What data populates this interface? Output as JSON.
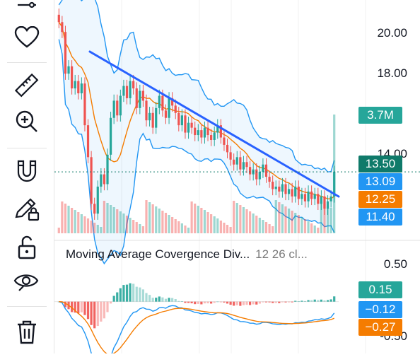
{
  "toolbar": {
    "items": [
      {
        "name": "indicators-icon"
      },
      {
        "name": "favorites-heart-icon"
      },
      {
        "name": "measure-ruler-icon"
      },
      {
        "name": "zoom-in-icon"
      },
      {
        "name": "magnet-icon"
      },
      {
        "name": "drawing-lock-pencil-icon"
      },
      {
        "name": "unlock-icon"
      },
      {
        "name": "hide-eye-icon"
      },
      {
        "name": "trash-icon"
      }
    ]
  },
  "price_axis": {
    "ticks": [
      "20.00",
      "18.00",
      "14.00"
    ],
    "badges": {
      "volume": {
        "value": "3.7M",
        "color": "#26a69a"
      },
      "last_price": {
        "value": "13.50",
        "color": "#26a69a"
      },
      "upper_band": {
        "value": "13.09",
        "color": "#2196f3"
      },
      "ma": {
        "value": "12.25",
        "color": "#f57c00"
      },
      "lower_band": {
        "value": "11.40",
        "color": "#2196f3"
      }
    }
  },
  "macd": {
    "title": "Moving Average Covergence Div...",
    "params": "12 26 cl...",
    "ticks": [
      "0.50",
      "-0.50"
    ],
    "badges": {
      "histogram": {
        "value": "0.15",
        "color": "#26a69a"
      },
      "macd_line": {
        "value": "−0.12",
        "color": "#2196f3"
      },
      "signal_line": {
        "value": "−0.27",
        "color": "#f57c00"
      }
    }
  },
  "colors": {
    "up": "#26a69a",
    "down": "#ef5350",
    "band": "#2196f3",
    "ma": "#f57c00",
    "trendline": "#2962ff"
  },
  "chart_data": {
    "type": "candlestick",
    "price_ylim": [
      11.0,
      20.5
    ],
    "closes": [
      19.6,
      19.2,
      17.5,
      17.8,
      16.9,
      17.2,
      16.7,
      17.1,
      15.4,
      14.1,
      12.2,
      11.8,
      12.9,
      13.4,
      13.0,
      14.2,
      15.7,
      16.4,
      15.8,
      16.6,
      17.0,
      16.5,
      17.2,
      16.9,
      16.1,
      16.8,
      16.4,
      15.6,
      15.9,
      15.3,
      16.1,
      16.6,
      16.0,
      15.7,
      16.5,
      16.2,
      15.9,
      15.4,
      15.8,
      15.1,
      15.5,
      15.3,
      15.0,
      15.2,
      14.9,
      15.3,
      15.0,
      14.8,
      15.1,
      15.4,
      14.9,
      14.6,
      14.3,
      14.0,
      13.8,
      14.1,
      13.6,
      13.9,
      13.7,
      13.4,
      13.6,
      13.2,
      13.5,
      13.8,
      13.3,
      13.1,
      12.8,
      12.9,
      12.7,
      13.0,
      12.6,
      12.8,
      12.5,
      12.9,
      12.4,
      12.6,
      12.3,
      12.7,
      12.4,
      12.6,
      12.2,
      12.5,
      12.0,
      12.3,
      12.5,
      13.5
    ],
    "volume_scale": "relative",
    "macd_ylim": [
      -0.75,
      0.6
    ]
  }
}
